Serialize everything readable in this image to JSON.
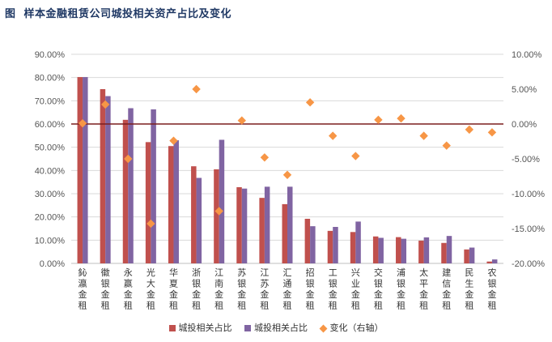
{
  "header": {
    "prefix": "图",
    "title": "样本金融租赁公司城投相关资产占比及变化"
  },
  "colors": {
    "series1": "#c0504d",
    "series2": "#8064a2",
    "change": "#f79646",
    "zero_line": "#7b1e1e",
    "grid": "#d9d9d9"
  },
  "chart_data": {
    "type": "bar",
    "title": "样本金融租赁公司城投相关资产占比及变化",
    "categories": [
      "鈊瀛金租",
      "徽银金租",
      "永赢金租",
      "光大金租",
      "华夏金租",
      "浙银金租",
      "江南金租",
      "苏银金租",
      "江苏金租",
      "汇通金租",
      "招银金租",
      "工银金租",
      "兴业金租",
      "交银金租",
      "浦银金租",
      "太平金租",
      "建信金租",
      "民生金租",
      "农银金租"
    ],
    "series": [
      {
        "name": "城投相关占比",
        "axis": "left",
        "kind": "bar",
        "values": [
          80.2,
          75.0,
          61.8,
          52.2,
          50.5,
          41.8,
          40.5,
          32.8,
          28.2,
          25.5,
          19.2,
          14.0,
          13.5,
          11.6,
          11.3,
          9.8,
          8.8,
          6.0,
          0.8
        ]
      },
      {
        "name": "城投相关占比",
        "axis": "left",
        "kind": "bar",
        "values": [
          80.2,
          72.0,
          66.8,
          66.3,
          53.0,
          36.8,
          53.2,
          32.2,
          33.0,
          33.0,
          16.0,
          15.7,
          18.0,
          11.0,
          10.6,
          11.2,
          11.8,
          6.8,
          1.7
        ]
      },
      {
        "name": "变化（右轴）",
        "axis": "right",
        "kind": "scatter",
        "values": [
          0.1,
          2.8,
          -5.0,
          -14.3,
          -2.4,
          5.0,
          -12.5,
          0.5,
          -4.8,
          -7.3,
          3.1,
          -1.7,
          -4.6,
          0.6,
          0.8,
          -1.7,
          -3.1,
          -0.8,
          -1.2
        ]
      }
    ],
    "y_left": {
      "min": 0,
      "max": 90,
      "step": 10,
      "ticks": [
        "0.00%",
        "10.00%",
        "20.00%",
        "30.00%",
        "40.00%",
        "50.00%",
        "60.00%",
        "70.00%",
        "80.00%",
        "90.00%"
      ]
    },
    "y_right": {
      "min": -20,
      "max": 10,
      "step": 5,
      "ticks": [
        "-20.00%",
        "-15.00%",
        "-10.00%",
        "-5.00%",
        "0.00%",
        "5.00%",
        "10.00%"
      ]
    },
    "grid": true,
    "legend_position": "bottom"
  },
  "legend": {
    "items": [
      "城投相关占比",
      "城投相关占比",
      "变化（右轴）"
    ]
  }
}
